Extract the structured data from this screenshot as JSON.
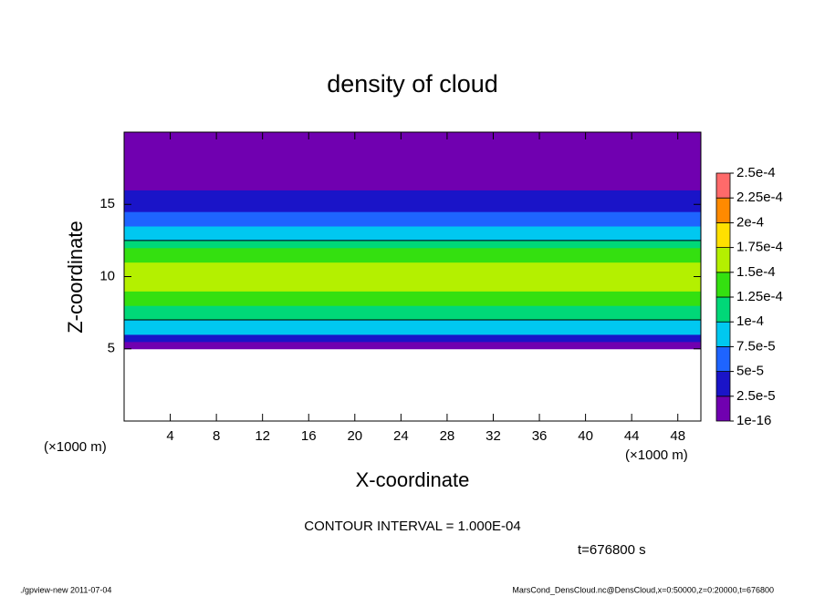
{
  "chart_data": {
    "type": "contour",
    "title": "density of cloud",
    "x_label": "X-coordinate",
    "y_label": "Z-coordinate",
    "x_unit_label": "(×1000 m)",
    "y_unit_label": "(×1000 m)",
    "xlim": [
      0,
      50
    ],
    "xticks": [
      4,
      8,
      12,
      16,
      20,
      24,
      28,
      32,
      36,
      40,
      44,
      48
    ],
    "ylim": [
      0,
      20
    ],
    "yticks": [
      5,
      10,
      15
    ],
    "z": [
      5.25,
      5.75,
      6.25,
      6.75,
      7.25,
      7.75,
      8.25,
      8.75,
      9.25,
      9.75,
      10.25,
      10.75,
      11.25,
      11.75,
      12.25,
      12.75,
      13.25,
      13.75,
      14.25,
      14.75,
      15.25,
      15.75,
      16.25,
      16.75,
      17.25,
      17.75,
      18.25,
      18.75,
      19.25,
      19.75
    ],
    "values": [
      1e-05,
      4e-05,
      8e-05,
      9e-05,
      0.00011,
      0.00012,
      0.00013,
      0.00014,
      0.00015,
      0.00016,
      0.00016,
      0.00015,
      0.00014,
      0.00013,
      0.00012,
      9e-05,
      8e-05,
      7e-05,
      5e-05,
      4e-05,
      3e-05,
      3e-05,
      2e-05,
      2e-05,
      1e-05,
      1e-05,
      1e-05,
      1e-05,
      1e-05,
      1e-05
    ],
    "contour_interval": 0.0001,
    "contour_text": "CONTOUR INTERVAL = 1.000E-04",
    "colorbar": {
      "ticks": [
        {
          "value": 1e-16,
          "label": "1e-16"
        },
        {
          "value": 2.5e-05,
          "label": "2.5e-5"
        },
        {
          "value": 5e-05,
          "label": "5e-5"
        },
        {
          "value": 7.5e-05,
          "label": "7.5e-5"
        },
        {
          "value": 0.0001,
          "label": "1e-4"
        },
        {
          "value": 0.000125,
          "label": "1.25e-4"
        },
        {
          "value": 0.00015,
          "label": "1.5e-4"
        },
        {
          "value": 0.000175,
          "label": "1.75e-4"
        },
        {
          "value": 0.0002,
          "label": "2e-4"
        },
        {
          "value": 0.000225,
          "label": "2.25e-4"
        },
        {
          "value": 0.00025,
          "label": "2.5e-4"
        }
      ],
      "colors": [
        "#7000b0",
        "#1a14c8",
        "#1e64ff",
        "#00c8f0",
        "#00d878",
        "#34e010",
        "#b4f000",
        "#ffe000",
        "#ff8a00",
        "#ff6a6a"
      ]
    },
    "time_label": "t=676800 s",
    "footer_left": "./gpview-new  2011-07-04",
    "footer_right": "MarsCond_DensCloud.nc@DensCloud,x=0:50000,z=0:20000,t=676800"
  }
}
